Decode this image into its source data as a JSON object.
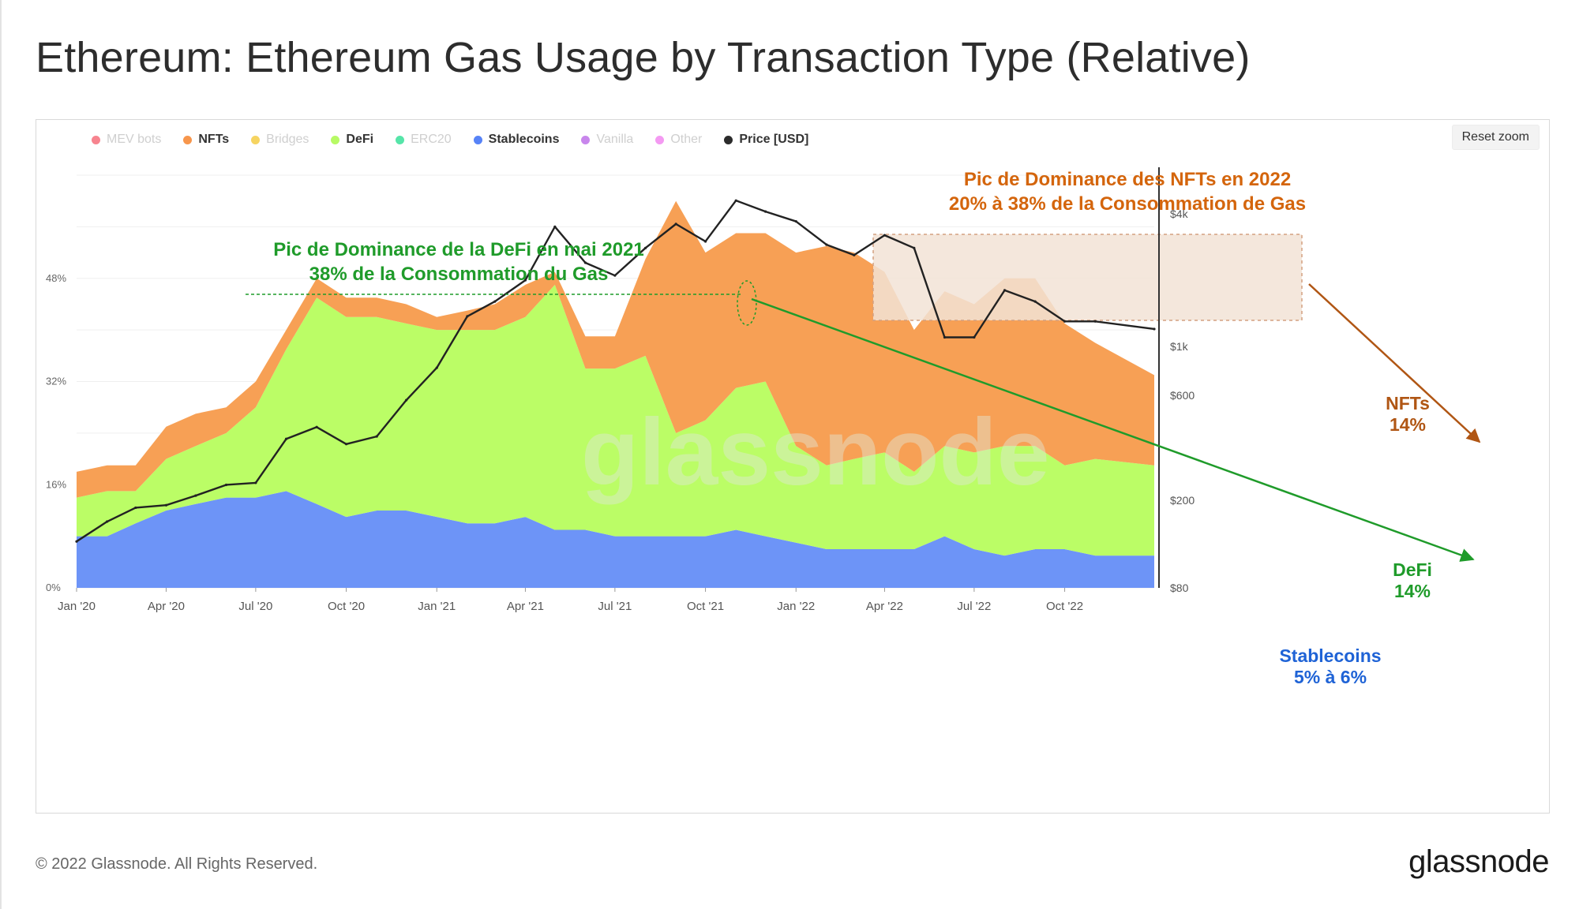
{
  "title": "Ethereum: Ethereum Gas Usage by Transaction Type (Relative)",
  "reset_zoom_label": "Reset zoom",
  "legend": [
    {
      "label": "MEV bots",
      "color": "#f45b69",
      "active": false
    },
    {
      "label": "NFTs",
      "color": "#f7964c",
      "active": true
    },
    {
      "label": "Bridges",
      "color": "#f3c62c",
      "active": false
    },
    {
      "label": "DeFi",
      "color": "#b7fa65",
      "active": true
    },
    {
      "label": "ERC20",
      "color": "#1ddc8c",
      "active": false
    },
    {
      "label": "Stablecoins",
      "color": "#5783f7",
      "active": true
    },
    {
      "label": "Vanilla",
      "color": "#b55ee6",
      "active": false
    },
    {
      "label": "Other",
      "color": "#f078ee",
      "active": false
    },
    {
      "label": "Price [USD]",
      "color": "#2b2b2b",
      "active": true
    }
  ],
  "watermark": "glassnode",
  "footer": {
    "copyright": "© 2022 Glassnode. All Rights Reserved.",
    "logo": "glassnode"
  },
  "annotations": {
    "defi_peak_line1": "Pic de Dominance de la DeFi en mai 2021",
    "defi_peak_line2": "38% de la Consommation du Gas",
    "nft_peak_line1": "Pic de Dominance des NFTs en 2022",
    "nft_peak_line2": "20% à 38% de la Consommation de Gas",
    "nfts_label": "NFTs",
    "nfts_value": "14%",
    "defi_label": "DeFi",
    "defi_value": "14%",
    "stable_label": "Stablecoins",
    "stable_value": "5% à 6%"
  },
  "colors": {
    "nfts": "#f7a055",
    "defi": "#bbfd66",
    "stablecoins": "#6d94f7",
    "price": "#222222",
    "defi_annotation": "#1f9b2a",
    "nft_annotation": "#d4650c",
    "nft_arrow": "#b05614",
    "stable_annotation": "#1f63d6",
    "highlight_box": "#f2e3d6"
  },
  "chart_data": {
    "type": "area",
    "stacked": true,
    "x": [
      "2020-01-01",
      "2020-02-01",
      "2020-03-01",
      "2020-04-01",
      "2020-05-01",
      "2020-06-01",
      "2020-07-01",
      "2020-08-01",
      "2020-09-01",
      "2020-10-01",
      "2020-11-01",
      "2020-12-01",
      "2021-01-01",
      "2021-02-01",
      "2021-03-01",
      "2021-04-01",
      "2021-05-01",
      "2021-06-01",
      "2021-07-01",
      "2021-08-01",
      "2021-09-01",
      "2021-10-01",
      "2021-11-01",
      "2021-12-01",
      "2022-01-01",
      "2022-02-01",
      "2022-03-01",
      "2022-04-01",
      "2022-05-01",
      "2022-06-01",
      "2022-07-01",
      "2022-08-01",
      "2022-09-01",
      "2022-10-01",
      "2022-11-01",
      "2022-12-01"
    ],
    "x_tick_labels": [
      "Jan '20",
      "Apr '20",
      "Jul '20",
      "Oct '20",
      "Jan '21",
      "Apr '21",
      "Jul '21",
      "Oct '21",
      "Jan '22",
      "Apr '22",
      "Jul '22",
      "Oct '22"
    ],
    "x_tick_dates": [
      "2020-01-01",
      "2020-04-01",
      "2020-07-01",
      "2020-10-01",
      "2021-01-01",
      "2021-04-01",
      "2021-07-01",
      "2021-10-01",
      "2022-01-01",
      "2022-04-01",
      "2022-07-01",
      "2022-10-01"
    ],
    "y_left": {
      "ticks": [
        "0%",
        "16%",
        "32%",
        "48%"
      ],
      "tick_values": [
        0,
        16,
        32,
        48
      ],
      "range": [
        0,
        64
      ]
    },
    "y_right": {
      "scale": "log",
      "ticks": [
        "$80",
        "$200",
        "$600",
        "$1k",
        "$4k"
      ],
      "tick_values": [
        80,
        200,
        600,
        1000,
        4000
      ],
      "range": [
        80,
        6000
      ]
    },
    "series": [
      {
        "name": "Stablecoins",
        "axis": "left",
        "values": [
          8,
          8,
          10,
          12,
          13,
          14,
          14,
          15,
          13,
          11,
          12,
          12,
          11,
          10,
          10,
          11,
          9,
          9,
          8,
          8,
          8,
          8,
          9,
          8,
          7,
          6,
          6,
          6,
          6,
          8,
          6,
          5,
          6,
          6,
          5,
          5
        ]
      },
      {
        "name": "DeFi",
        "axis": "left",
        "values": [
          6,
          7,
          5,
          8,
          9,
          10,
          14,
          22,
          32,
          31,
          30,
          29,
          29,
          30,
          30,
          31,
          38,
          25,
          26,
          28,
          16,
          18,
          22,
          24,
          15,
          13,
          14,
          15,
          12,
          14,
          15,
          17,
          16,
          13,
          15,
          14
        ]
      },
      {
        "name": "NFTs",
        "axis": "left",
        "values": [
          4,
          4,
          4,
          5,
          5,
          4,
          4,
          3,
          3,
          3,
          3,
          3,
          2,
          3,
          4,
          5,
          2,
          5,
          5,
          15,
          36,
          26,
          24,
          23,
          30,
          34,
          32,
          28,
          22,
          24,
          23,
          26,
          26,
          22,
          18,
          14
        ]
      },
      {
        "name": "Price [USD]",
        "axis": "right",
        "values": [
          130,
          160,
          185,
          190,
          210,
          235,
          240,
          380,
          430,
          360,
          390,
          570,
          800,
          1370,
          1600,
          2000,
          3500,
          2400,
          2100,
          2800,
          3600,
          3000,
          4600,
          4100,
          3700,
          2900,
          2600,
          3200,
          2800,
          1100,
          1100,
          1800,
          1600,
          1300,
          1300,
          1200
        ]
      }
    ]
  }
}
